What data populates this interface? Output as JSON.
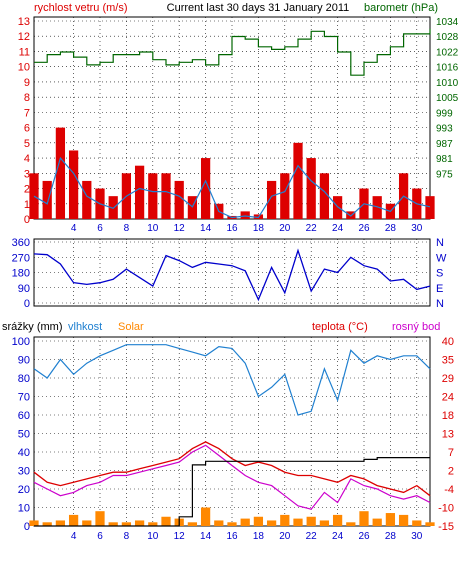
{
  "header": {
    "left": "rychlost vetru (m/s)",
    "center": "Current last 30 days 31 January 2011",
    "right": "barometr (hPa)"
  },
  "colors": {
    "red": "#dd0000",
    "green": "#006600",
    "blue": "#0000cc",
    "lightblue": "#2080d0",
    "orange": "#ff8800",
    "magenta": "#cc00cc",
    "black": "#000000"
  },
  "chart_data": [
    {
      "type": "line",
      "name": "wind-and-pressure",
      "title": "Current last 30 days 31 January 2011",
      "ylabel_left": "rychlost vetru (m/s)",
      "ylabel_right": "barometr (hPa)",
      "xlim": [
        1,
        31
      ],
      "x_ticks": [
        "4",
        "6",
        "8",
        "10",
        "12",
        "14",
        "16",
        "18",
        "20",
        "22",
        "24",
        "26",
        "28",
        "30"
      ],
      "ylim_left": [
        0,
        13
      ],
      "left_ticks": [
        "0",
        "1",
        "2",
        "3",
        "4",
        "5",
        "6",
        "7",
        "8",
        "9",
        "10",
        "11",
        "12",
        "13"
      ],
      "right_ticks": [
        {
          "label": "1034",
          "at": 13
        },
        {
          "label": "1028",
          "at": 12
        },
        {
          "label": "1022",
          "at": 11
        },
        {
          "label": "1016",
          "at": 10
        },
        {
          "label": "1010",
          "at": 9
        },
        {
          "label": "1005",
          "at": 8
        },
        {
          "label": "999",
          "at": 7
        },
        {
          "label": "993",
          "at": 6
        },
        {
          "label": "987",
          "at": 5
        },
        {
          "label": "981",
          "at": 4
        },
        {
          "label": "975",
          "at": 3
        }
      ],
      "gust_series": {
        "color": "#dd0000",
        "x": [
          1,
          2,
          3,
          4,
          5,
          6,
          7,
          8,
          9,
          10,
          11,
          12,
          13,
          14,
          15,
          16,
          17,
          18,
          19,
          20,
          21,
          22,
          23,
          24,
          25,
          26,
          27,
          28,
          29,
          30,
          31
        ],
        "values": [
          3,
          2.5,
          6,
          4.5,
          2.5,
          2,
          1.5,
          3,
          3.5,
          3,
          3,
          2.5,
          1.5,
          4,
          1,
          0.2,
          0.5,
          0.3,
          2.5,
          3,
          5,
          4,
          3,
          1.5,
          0.5,
          2,
          1.5,
          1,
          3,
          2,
          1.5
        ]
      },
      "wind_series": {
        "color": "#2080d0",
        "x": [
          1,
          2,
          3,
          4,
          5,
          6,
          7,
          8,
          9,
          10,
          11,
          12,
          13,
          14,
          15,
          16,
          17,
          18,
          19,
          20,
          21,
          22,
          23,
          24,
          25,
          26,
          27,
          28,
          29,
          30,
          31
        ],
        "values": [
          1.5,
          1,
          4,
          3,
          1.5,
          1,
          0.7,
          1.5,
          2,
          1.8,
          1.8,
          1.5,
          0.8,
          2.5,
          0.5,
          0.1,
          0.2,
          0.1,
          1.5,
          1.8,
          3.5,
          2.5,
          1.8,
          0.8,
          0.2,
          1,
          0.8,
          0.5,
          1.5,
          1,
          0.8
        ]
      },
      "pressure_series": {
        "name": "barometr",
        "color": "#006600",
        "x": [
          1,
          2,
          3,
          4,
          5,
          6,
          7,
          8,
          9,
          10,
          11,
          12,
          13,
          14,
          15,
          16,
          17,
          18,
          19,
          20,
          21,
          22,
          23,
          24,
          25,
          26,
          27,
          28,
          29,
          30,
          31
        ],
        "values": [
          1018,
          1021,
          1022,
          1020,
          1017,
          1018,
          1021,
          1021,
          1022,
          1019,
          1017,
          1018,
          1019,
          1017,
          1021,
          1028,
          1027,
          1024,
          1023,
          1024,
          1027,
          1030,
          1028,
          1022,
          1013,
          1018,
          1021,
          1024,
          1029,
          1029,
          1031
        ]
      }
    },
    {
      "type": "line",
      "name": "wind-direction",
      "xlim": [
        1,
        31
      ],
      "ylim": [
        0,
        360
      ],
      "y_ticks": [
        "0",
        "90",
        "180",
        "270",
        "360"
      ],
      "right_labels": [
        "N",
        "W",
        "S",
        "E",
        "N"
      ],
      "series": [
        {
          "color": "#0000cc",
          "x": [
            1,
            2,
            3,
            4,
            5,
            6,
            7,
            8,
            9,
            10,
            11,
            12,
            13,
            14,
            15,
            16,
            17,
            18,
            19,
            20,
            21,
            22,
            23,
            24,
            25,
            26,
            27,
            28,
            29,
            30,
            31
          ],
          "values": [
            290,
            285,
            230,
            120,
            110,
            120,
            140,
            200,
            150,
            100,
            280,
            250,
            210,
            240,
            230,
            220,
            190,
            20,
            210,
            60,
            310,
            70,
            200,
            180,
            270,
            220,
            200,
            130,
            140,
            80,
            100
          ]
        }
      ]
    },
    {
      "type": "line",
      "name": "rain-humidity-temperature",
      "xlim": [
        1,
        31
      ],
      "ylim_left": [
        0,
        100
      ],
      "left_ticks": [
        "0",
        "10",
        "20",
        "30",
        "40",
        "50",
        "60",
        "70",
        "80",
        "90",
        "100"
      ],
      "right_ticks": [
        "40",
        "35",
        "29",
        "24",
        "18",
        "13",
        "7",
        "2",
        "-4",
        "-10",
        "-15"
      ],
      "header_labels": {
        "rain": "srážky (mm)",
        "humidity": "vlhkost",
        "solar": "Solar",
        "temperature": "teplota (°C)",
        "dewpoint": "rosný bod"
      },
      "humidity_series": {
        "color": "#2080d0",
        "x": [
          1,
          2,
          3,
          4,
          5,
          6,
          7,
          8,
          9,
          10,
          11,
          12,
          13,
          14,
          15,
          16,
          17,
          18,
          19,
          20,
          21,
          22,
          23,
          24,
          25,
          26,
          27,
          28,
          29,
          30,
          31
        ],
        "values": [
          85,
          80,
          90,
          82,
          88,
          92,
          95,
          98,
          98,
          98,
          98,
          96,
          94,
          92,
          97,
          96,
          88,
          70,
          75,
          82,
          60,
          62,
          85,
          68,
          95,
          88,
          92,
          90,
          92,
          92,
          85
        ]
      },
      "temperature_series": {
        "color": "#dd0000",
        "x": [
          1,
          2,
          3,
          4,
          5,
          6,
          7,
          8,
          9,
          10,
          11,
          12,
          13,
          14,
          15,
          16,
          17,
          18,
          19,
          20,
          21,
          22,
          23,
          24,
          25,
          26,
          27,
          28,
          29,
          30,
          31
        ],
        "values": [
          1,
          -2,
          -3,
          -2,
          -1,
          0,
          1,
          1,
          2,
          3,
          4,
          5,
          8,
          10,
          8,
          5,
          3,
          4,
          3,
          1,
          0,
          0,
          -1,
          -2,
          0,
          -1,
          -3,
          -4,
          -5,
          -3,
          -6
        ]
      },
      "dewpoint_series": {
        "color": "#cc00cc",
        "x": [
          1,
          2,
          3,
          4,
          5,
          6,
          7,
          8,
          9,
          10,
          11,
          12,
          13,
          14,
          15,
          16,
          17,
          18,
          19,
          20,
          21,
          22,
          23,
          24,
          25,
          26,
          27,
          28,
          29,
          30,
          31
        ],
        "values": [
          -2,
          -4,
          -6,
          -5,
          -3,
          -2,
          0,
          0,
          1,
          2,
          3,
          4,
          7,
          9,
          6,
          3,
          0,
          -2,
          -3,
          -6,
          -9,
          -10,
          -5,
          -8,
          -1,
          -3,
          -4,
          -6,
          -7,
          -6,
          -8
        ]
      },
      "solar_series": {
        "color": "#ff8800",
        "x": [
          1,
          2,
          3,
          4,
          5,
          6,
          7,
          8,
          9,
          10,
          11,
          12,
          13,
          14,
          15,
          16,
          17,
          18,
          19,
          20,
          21,
          22,
          23,
          24,
          25,
          26,
          27,
          28,
          29,
          30,
          31
        ],
        "values": [
          3,
          2,
          3,
          6,
          3,
          8,
          2,
          2,
          3,
          2,
          5,
          4,
          2,
          10,
          3,
          2,
          4,
          5,
          3,
          6,
          4,
          5,
          3,
          6,
          2,
          8,
          4,
          7,
          6,
          3,
          2
        ]
      },
      "rain_series": {
        "color": "#000000",
        "x": [
          1,
          2,
          3,
          4,
          5,
          6,
          7,
          8,
          9,
          10,
          11,
          12,
          13,
          14,
          15,
          16,
          17,
          18,
          19,
          20,
          21,
          22,
          23,
          24,
          25,
          26,
          27,
          28,
          29,
          30,
          31
        ],
        "values": [
          0,
          0,
          0,
          0,
          0,
          0,
          0,
          0,
          0,
          0,
          0,
          5,
          33,
          35,
          35,
          35,
          35,
          35,
          35,
          35,
          35,
          35,
          35,
          35,
          35,
          36,
          37,
          37,
          37,
          37,
          37
        ]
      }
    }
  ],
  "x_tick_labels": [
    "4",
    "6",
    "8",
    "10",
    "12",
    "14",
    "16",
    "18",
    "20",
    "22",
    "24",
    "26",
    "28",
    "30"
  ]
}
